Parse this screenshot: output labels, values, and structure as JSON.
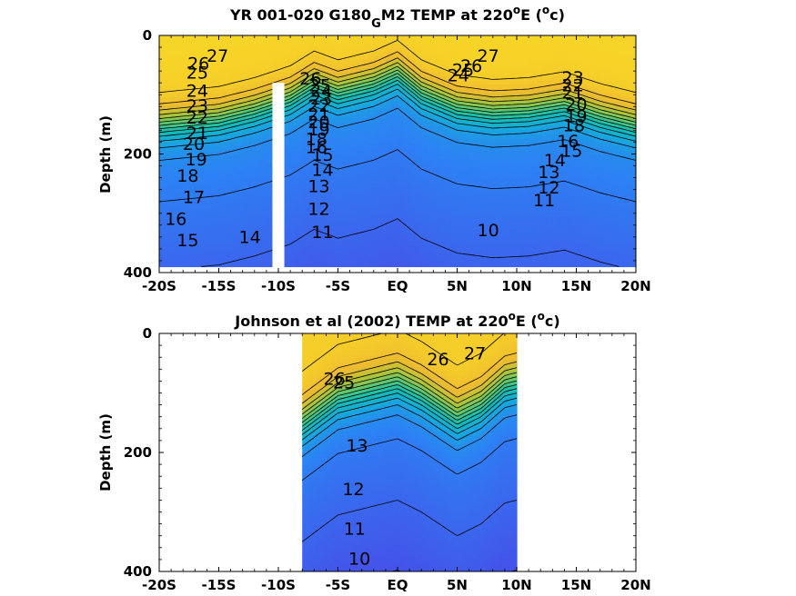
{
  "chart_data": [
    {
      "type": "contour",
      "title_main": "YR 001-020 G180",
      "title_sub": "G",
      "title_rest": "M2 TEMP at 220",
      "title_sup": "o",
      "title_end": "E (",
      "title_sup2": "o",
      "title_tail": "c)",
      "ylabel": "Depth (m)",
      "xlim": [
        -20,
        20
      ],
      "ylim": [
        0,
        400
      ],
      "x_ticks": [
        -20,
        -15,
        -10,
        -5,
        0,
        5,
        10,
        15,
        20
      ],
      "x_tick_labels": [
        "-20S",
        "-15S",
        "-10S",
        "-5S",
        "EQ",
        "5N",
        "10N",
        "15N",
        "20N"
      ],
      "y_ticks": [
        0,
        200,
        400
      ],
      "y_tick_labels": [
        "0",
        "200",
        "400"
      ],
      "data_extent": {
        "x": [
          -20,
          20
        ],
        "y": [
          0,
          390
        ]
      },
      "gap": [
        -10.5,
        -9.5
      ],
      "gap_from_depth": 80,
      "contour_levels": [
        10,
        11,
        12,
        13,
        14,
        15,
        16,
        17,
        18,
        19,
        20,
        21,
        22,
        23,
        24,
        25,
        26,
        27
      ],
      "labels": [
        {
          "text": "27",
          "x": -15.1,
          "y": 36
        },
        {
          "text": "26",
          "x": -16.7,
          "y": 49
        },
        {
          "text": "25",
          "x": -16.8,
          "y": 64
        },
        {
          "text": "24",
          "x": -16.8,
          "y": 95
        },
        {
          "text": "23",
          "x": -16.8,
          "y": 120
        },
        {
          "text": "22",
          "x": -16.8,
          "y": 140
        },
        {
          "text": "21",
          "x": -16.8,
          "y": 166
        },
        {
          "text": "20",
          "x": -17.1,
          "y": 185
        },
        {
          "text": "19",
          "x": -16.9,
          "y": 211
        },
        {
          "text": "18",
          "x": -17.6,
          "y": 238
        },
        {
          "text": "17",
          "x": -17.1,
          "y": 274
        },
        {
          "text": "16",
          "x": -18.6,
          "y": 311
        },
        {
          "text": "15",
          "x": -17.6,
          "y": 347
        },
        {
          "text": "14",
          "x": -12.4,
          "y": 342
        },
        {
          "text": "26",
          "x": -7.3,
          "y": 74
        },
        {
          "text": "25",
          "x": -6.5,
          "y": 86
        },
        {
          "text": "24",
          "x": -6.4,
          "y": 95
        },
        {
          "text": "23",
          "x": -6.4,
          "y": 108
        },
        {
          "text": "22",
          "x": -6.6,
          "y": 120
        },
        {
          "text": "21",
          "x": -6.6,
          "y": 135
        },
        {
          "text": "20",
          "x": -6.6,
          "y": 148
        },
        {
          "text": "19",
          "x": -6.6,
          "y": 160
        },
        {
          "text": "18",
          "x": -6.8,
          "y": 176
        },
        {
          "text": "16",
          "x": -6.8,
          "y": 190
        },
        {
          "text": "15",
          "x": -6.3,
          "y": 203
        },
        {
          "text": "14",
          "x": -6.3,
          "y": 228
        },
        {
          "text": "13",
          "x": -6.6,
          "y": 256
        },
        {
          "text": "12",
          "x": -6.6,
          "y": 294
        },
        {
          "text": "11",
          "x": -6.3,
          "y": 333
        },
        {
          "text": "27",
          "x": 7.6,
          "y": 36
        },
        {
          "text": "26",
          "x": 6.2,
          "y": 53
        },
        {
          "text": "25",
          "x": 5.5,
          "y": 60
        },
        {
          "text": "24",
          "x": 5.1,
          "y": 69
        },
        {
          "text": "23",
          "x": 14.7,
          "y": 73
        },
        {
          "text": "22",
          "x": 14.7,
          "y": 86
        },
        {
          "text": "21",
          "x": 14.7,
          "y": 98
        },
        {
          "text": "20",
          "x": 15.0,
          "y": 118
        },
        {
          "text": "19",
          "x": 15.0,
          "y": 138
        },
        {
          "text": "18",
          "x": 14.8,
          "y": 153
        },
        {
          "text": "16",
          "x": 14.3,
          "y": 180
        },
        {
          "text": "15",
          "x": 14.6,
          "y": 196
        },
        {
          "text": "14",
          "x": 13.2,
          "y": 212
        },
        {
          "text": "13",
          "x": 12.7,
          "y": 232
        },
        {
          "text": "12",
          "x": 12.7,
          "y": 258
        },
        {
          "text": "11",
          "x": 12.3,
          "y": 280
        },
        {
          "text": "10",
          "x": 7.6,
          "y": 330
        }
      ]
    },
    {
      "type": "contour",
      "title_main": "Johnson et al (2002) TEMP at 220",
      "title_sup": "o",
      "title_end": "E (",
      "title_sup2": "o",
      "title_tail": "c)",
      "ylabel": "Depth (m)",
      "xlim": [
        -20,
        20
      ],
      "ylim": [
        0,
        400
      ],
      "x_ticks": [
        -20,
        -15,
        -10,
        -5,
        0,
        5,
        10,
        15,
        20
      ],
      "x_tick_labels": [
        "-20S",
        "-15S",
        "-10S",
        "-5S",
        "EQ",
        "5N",
        "10N",
        "15N",
        "20N"
      ],
      "y_ticks": [
        0,
        200,
        400
      ],
      "y_tick_labels": [
        "0",
        "200",
        "400"
      ],
      "data_extent": {
        "x": [
          -8,
          10
        ],
        "y": [
          0,
          400
        ]
      },
      "contour_levels": [
        10,
        11,
        12,
        13,
        14,
        15,
        16,
        17,
        18,
        19,
        20,
        21,
        22,
        23,
        24,
        25,
        26,
        27
      ],
      "labels": [
        {
          "text": "27",
          "x": 6.5,
          "y": 35
        },
        {
          "text": "26",
          "x": 3.4,
          "y": 45
        },
        {
          "text": "26",
          "x": -5.3,
          "y": 78
        },
        {
          "text": "25",
          "x": -4.5,
          "y": 84
        },
        {
          "text": "13",
          "x": -3.4,
          "y": 190
        },
        {
          "text": "12",
          "x": -3.7,
          "y": 263
        },
        {
          "text": "11",
          "x": -3.6,
          "y": 330
        },
        {
          "text": "10",
          "x": -3.2,
          "y": 380
        }
      ]
    }
  ]
}
